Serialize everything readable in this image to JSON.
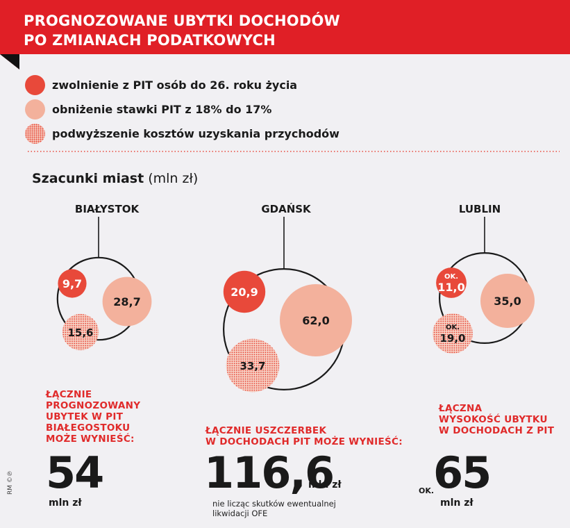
{
  "header": {
    "title_line1": "PROGNOZOWANE UBYTKI DOCHODÓW",
    "title_line2": "PO ZMIANACH PODATKOWYCH",
    "banner_color": "#e01f26"
  },
  "legend": {
    "items": [
      {
        "label": "zwolnienie z PIT osób do 26. roku życia",
        "style": "solid",
        "color": "#e8493a"
      },
      {
        "label": "obniżenie stawki PIT z 18% do 17%",
        "style": "light",
        "color": "#f3b19c"
      },
      {
        "label": "podwyższenie kosztów uzyskania przychodów",
        "style": "dotted",
        "color": "#e8493a"
      }
    ]
  },
  "section": {
    "title_bold": "Szacunki miast",
    "title_unit": "(mln zł)"
  },
  "chart_data": {
    "type": "bubble",
    "unit": "mln zł",
    "series_names": [
      "zwolnienie z PIT osób do 26. roku życia",
      "obniżenie stawki PIT z 18% do 17%",
      "podwyższenie kosztów uzyskania przychodów"
    ],
    "cities": [
      {
        "name": "BIAŁYSTOK",
        "values": [
          9.7,
          28.7,
          15.6
        ],
        "value_labels": [
          "9,7",
          "28,7",
          "15,6"
        ],
        "value_prefixes": [
          "",
          "",
          ""
        ],
        "total": 54,
        "total_label": "54",
        "total_prefix": "",
        "total_unit": "mln zł",
        "caption_lines": [
          "ŁĄCZNIE",
          "PROGNOZOWANY",
          "UBYTEK W PIT",
          "BIAŁEGOSTOKU",
          "MOŻE WYNIEŚĆ:"
        ],
        "note_lines": []
      },
      {
        "name": "GDAŃSK",
        "values": [
          20.9,
          62.0,
          33.7
        ],
        "value_labels": [
          "20,9",
          "62,0",
          "33,7"
        ],
        "value_prefixes": [
          "",
          "",
          ""
        ],
        "total": 116.6,
        "total_label": "116,6",
        "total_prefix": "",
        "total_unit": "mln zł",
        "caption_lines": [
          "ŁĄCZNIE USZCZERBEK",
          "W DOCHODACH PIT MOŻE WYNIEŚĆ:"
        ],
        "note_lines": [
          "nie licząc skutków ewentualnej",
          "likwidacji OFE"
        ]
      },
      {
        "name": "LUBLIN",
        "values": [
          11.0,
          35.0,
          19.0
        ],
        "value_labels": [
          "11,0",
          "35,0",
          "19,0"
        ],
        "value_prefixes": [
          "OK.",
          "",
          "OK."
        ],
        "total": 65,
        "total_label": "65",
        "total_prefix": "OK.",
        "total_unit": "mln zł",
        "caption_lines": [
          "ŁĄCZNA",
          "WYSOKOŚĆ UBYTKU",
          "W DOCHODACH Z PIT"
        ],
        "note_lines": []
      }
    ]
  },
  "credit": "RM ©℗"
}
